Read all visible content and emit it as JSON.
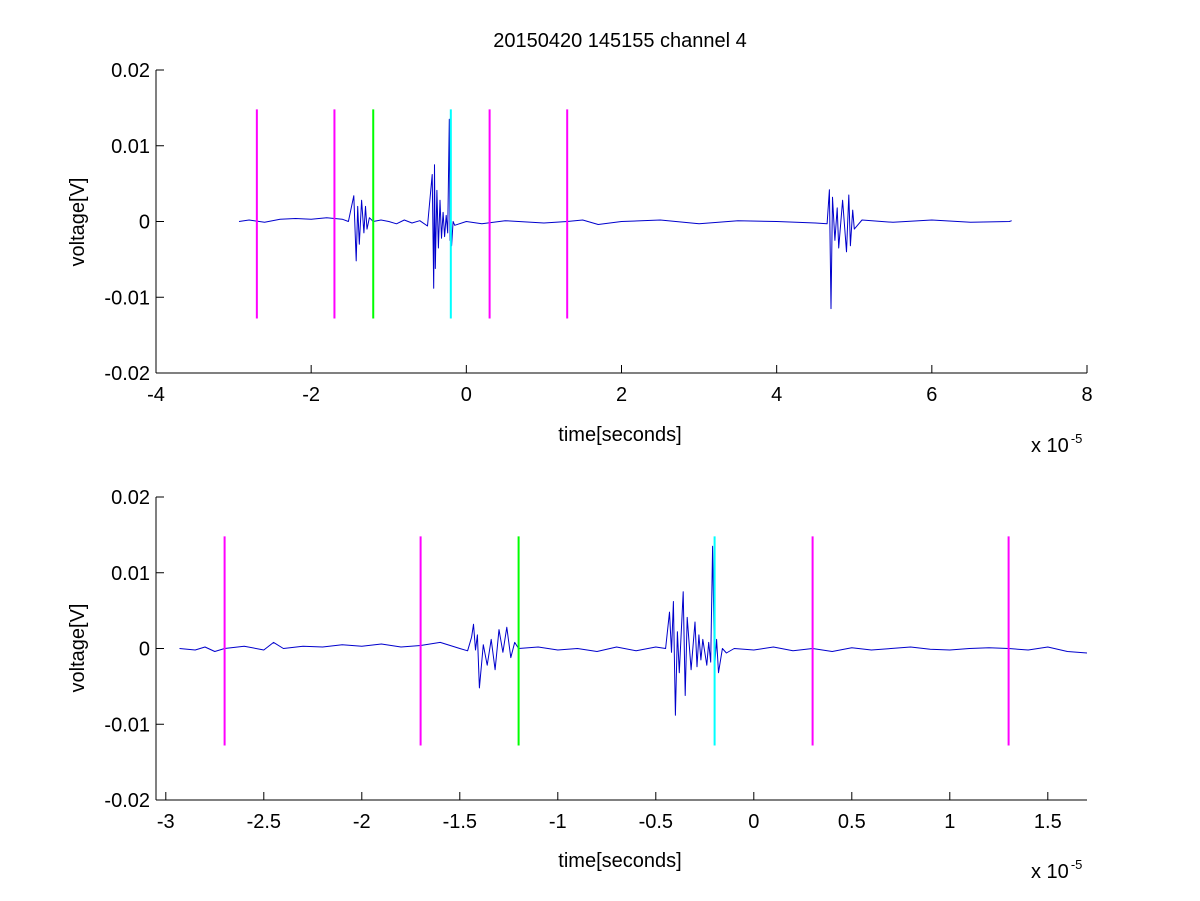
{
  "chart_data": [
    {
      "type": "line",
      "title": "20150420 145155 channel 4",
      "xlabel": "time[seconds]",
      "ylabel": "voltage[V]",
      "x_multiplier_text": "x 10",
      "x_multiplier_exp": "-5",
      "xlim": [
        -4,
        8
      ],
      "ylim": [
        -0.02,
        0.02
      ],
      "x_ticks": [
        -4,
        -2,
        0,
        2,
        4,
        6,
        8
      ],
      "x_tick_labels": [
        "-4",
        "-2",
        "0",
        "2",
        "4",
        "6",
        "8"
      ],
      "y_ticks": [
        0.02,
        0.01,
        0,
        -0.01,
        -0.02
      ],
      "y_tick_labels": [
        "0.02",
        "0.01",
        "0",
        "-0.01",
        "-0.02"
      ],
      "signal": {
        "color": "#0000cc",
        "x": [
          -2.93,
          -2.8,
          -2.6,
          -2.4,
          -2.2,
          -2.0,
          -1.8,
          -1.6,
          -1.52,
          -1.45,
          -1.42,
          -1.4,
          -1.38,
          -1.35,
          -1.32,
          -1.3,
          -1.28,
          -1.25,
          -1.2,
          -1.1,
          -1.0,
          -0.9,
          -0.8,
          -0.7,
          -0.6,
          -0.5,
          -0.44,
          -0.42,
          -0.41,
          -0.4,
          -0.38,
          -0.36,
          -0.34,
          -0.32,
          -0.3,
          -0.28,
          -0.26,
          -0.24,
          -0.22,
          -0.21,
          -0.2,
          -0.19,
          -0.17,
          -0.15,
          0.0,
          0.2,
          0.5,
          1.0,
          1.3,
          1.5,
          1.7,
          2.0,
          2.5,
          3.0,
          3.5,
          4.0,
          4.5,
          4.65,
          4.68,
          4.7,
          4.72,
          4.75,
          4.78,
          4.8,
          4.85,
          4.9,
          4.93,
          4.95,
          4.98,
          5.0,
          5.1,
          5.5,
          6.0,
          6.5,
          7.0,
          7.03
        ],
        "y": [
          0.0,
          0.0002,
          -0.0001,
          0.0003,
          0.0004,
          0.0003,
          0.0005,
          0.0003,
          0.0,
          0.0034,
          -0.0052,
          0.002,
          -0.003,
          0.0028,
          -0.0015,
          0.002,
          -0.001,
          0.0005,
          0.0,
          0.0002,
          0.0,
          -0.0003,
          0.0002,
          -0.0002,
          0.0001,
          -0.0006,
          0.0062,
          -0.0088,
          0.0075,
          -0.0062,
          0.0041,
          -0.0035,
          0.0028,
          -0.0022,
          0.0012,
          -0.002,
          0.0008,
          -0.0015,
          0.0135,
          -0.0025,
          0.0012,
          -0.0032,
          0.0,
          -0.0005,
          0.0,
          -0.0003,
          0.0001,
          -0.0002,
          0.0,
          0.0002,
          -0.0004,
          0.0,
          0.0002,
          -0.0003,
          0.0001,
          0.0,
          -0.0002,
          -0.0003,
          0.0042,
          -0.0115,
          0.0032,
          -0.0025,
          0.0018,
          -0.0035,
          0.0028,
          -0.004,
          0.0035,
          -0.0032,
          0.0015,
          -0.001,
          0.0002,
          -0.0001,
          0.0002,
          -0.0001,
          0.0,
          0.0001
        ]
      },
      "markers": [
        {
          "x": -2.7,
          "color": "#ff00ff"
        },
        {
          "x": -1.7,
          "color": "#ff00ff"
        },
        {
          "x": -1.2,
          "color": "#00ff00"
        },
        {
          "x": -0.2,
          "color": "#00ffff"
        },
        {
          "x": 0.3,
          "color": "#ff00ff"
        },
        {
          "x": 1.3,
          "color": "#ff00ff"
        }
      ],
      "marker_ylim": [
        -0.0128,
        0.0148
      ]
    },
    {
      "type": "line",
      "xlabel": "time[seconds]",
      "ylabel": "voltage[V]",
      "x_multiplier_text": "x 10",
      "x_multiplier_exp": "-5",
      "xlim": [
        -3.05,
        1.7
      ],
      "ylim": [
        -0.02,
        0.02
      ],
      "x_ticks": [
        -3,
        -2.5,
        -2,
        -1.5,
        -1,
        -0.5,
        0,
        0.5,
        1,
        1.5
      ],
      "x_tick_labels": [
        "-3",
        "-2.5",
        "-2",
        "-1.5",
        "-1",
        "-0.5",
        "0",
        "0.5",
        "1",
        "1.5"
      ],
      "y_ticks": [
        0.02,
        0.01,
        0,
        -0.01,
        -0.02
      ],
      "y_tick_labels": [
        "0.02",
        "0.01",
        "0",
        "-0.01",
        "-0.02"
      ],
      "signal": {
        "color": "#0000cc",
        "x": [
          -2.93,
          -2.85,
          -2.8,
          -2.75,
          -2.7,
          -2.6,
          -2.5,
          -2.45,
          -2.4,
          -2.3,
          -2.2,
          -2.1,
          -2.0,
          -1.9,
          -1.8,
          -1.7,
          -1.6,
          -1.5,
          -1.46,
          -1.44,
          -1.43,
          -1.42,
          -1.41,
          -1.4,
          -1.38,
          -1.36,
          -1.34,
          -1.32,
          -1.3,
          -1.28,
          -1.26,
          -1.24,
          -1.22,
          -1.2,
          -1.1,
          -1.0,
          -0.9,
          -0.8,
          -0.7,
          -0.6,
          -0.5,
          -0.45,
          -0.43,
          -0.42,
          -0.41,
          -0.4,
          -0.39,
          -0.38,
          -0.36,
          -0.35,
          -0.34,
          -0.32,
          -0.3,
          -0.29,
          -0.28,
          -0.27,
          -0.26,
          -0.24,
          -0.23,
          -0.22,
          -0.21,
          -0.2,
          -0.19,
          -0.18,
          -0.16,
          -0.14,
          -0.1,
          0.0,
          0.1,
          0.2,
          0.3,
          0.4,
          0.5,
          0.6,
          0.7,
          0.8,
          0.9,
          1.0,
          1.1,
          1.2,
          1.3,
          1.4,
          1.5,
          1.6,
          1.7
        ],
        "y": [
          0.0,
          -0.0002,
          0.0002,
          -0.0004,
          0.0,
          0.0003,
          -0.0002,
          0.0008,
          0.0,
          0.0003,
          0.0002,
          0.0005,
          0.0003,
          0.0006,
          0.0002,
          0.0004,
          0.0008,
          0.0,
          -0.0003,
          0.0015,
          0.0032,
          -0.0002,
          0.0018,
          -0.0052,
          0.0005,
          -0.0022,
          0.0012,
          -0.0028,
          0.0025,
          -0.0005,
          0.0028,
          -0.0012,
          0.0008,
          0.0,
          0.0002,
          -0.0002,
          0.0,
          -0.0004,
          0.0002,
          -0.0003,
          0.0002,
          0.0,
          0.0048,
          -0.0005,
          0.0062,
          -0.0088,
          0.0022,
          -0.0032,
          0.0075,
          -0.0062,
          0.0041,
          -0.0028,
          0.0035,
          -0.0024,
          0.0018,
          -0.0015,
          0.0012,
          -0.0022,
          0.0008,
          -0.0018,
          0.0135,
          -0.0025,
          0.0012,
          -0.0032,
          0.0,
          -0.0006,
          0.0,
          -0.0002,
          0.0002,
          -0.0003,
          0.0,
          -0.0004,
          0.0001,
          -0.0002,
          0.0,
          0.0002,
          -0.0001,
          -0.0002,
          0.0,
          0.0001,
          0.0,
          -0.0002,
          0.0002,
          -0.0004,
          -0.0006
        ]
      },
      "markers": [
        {
          "x": -2.7,
          "color": "#ff00ff"
        },
        {
          "x": -1.7,
          "color": "#ff00ff"
        },
        {
          "x": -1.2,
          "color": "#00ff00"
        },
        {
          "x": -0.2,
          "color": "#00ffff"
        },
        {
          "x": 0.3,
          "color": "#ff00ff"
        },
        {
          "x": 1.3,
          "color": "#ff00ff"
        }
      ],
      "marker_ylim": [
        -0.0128,
        0.0148
      ]
    }
  ]
}
